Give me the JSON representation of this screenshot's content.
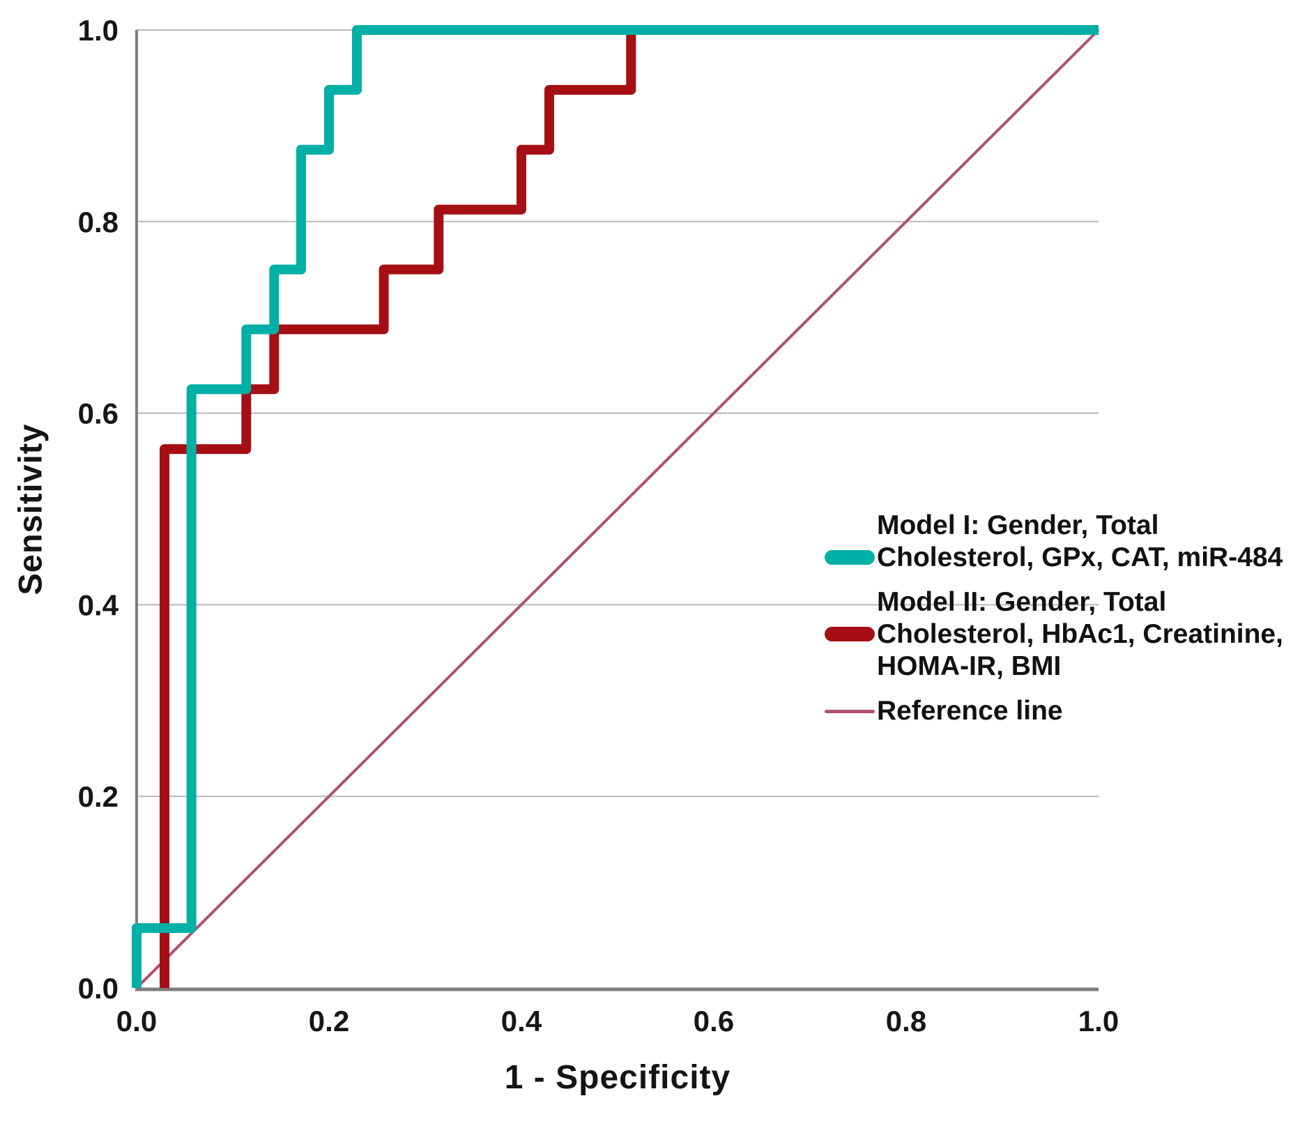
{
  "chart_data": {
    "type": "line",
    "subtype": "roc-step-curves",
    "title": "",
    "xlabel": "1 - Specificity",
    "ylabel": "Sensitivity",
    "xlim": [
      0.0,
      1.0
    ],
    "ylim": [
      0.0,
      1.0
    ],
    "x_tick_values": [
      0.0,
      0.2,
      0.4,
      0.6,
      0.8,
      1.0
    ],
    "x_tick_labels": [
      "0.0",
      "0.2",
      "0.4",
      "0.6",
      "0.8",
      "1.0"
    ],
    "y_tick_values": [
      0.0,
      0.2,
      0.4,
      0.6,
      0.8,
      1.0
    ],
    "y_tick_labels": [
      "0.0",
      "0.2",
      "0.4",
      "0.6",
      "0.8",
      "1.0"
    ],
    "grid": {
      "horizontal": true,
      "vertical": false
    },
    "legend_position": "inside-right",
    "colors": {
      "gridline": "#b9b9b9",
      "axis_line": "#7d7d7d",
      "text": "#161616"
    },
    "series": [
      {
        "name": "Model I: Gender, Total Cholesterol, GPx, CAT, miR-484",
        "color": "#00afa5",
        "stroke_width": 14,
        "points": [
          [
            0,
            0
          ],
          [
            0,
            0.0625
          ],
          [
            0.057,
            0.0625
          ],
          [
            0.057,
            0.625
          ],
          [
            0.114,
            0.625
          ],
          [
            0.114,
            0.6875
          ],
          [
            0.143,
            0.6875
          ],
          [
            0.143,
            0.75
          ],
          [
            0.171,
            0.75
          ],
          [
            0.171,
            0.875
          ],
          [
            0.2,
            0.875
          ],
          [
            0.2,
            0.9375
          ],
          [
            0.229,
            0.9375
          ],
          [
            0.229,
            1.0
          ],
          [
            1.0,
            1.0
          ]
        ]
      },
      {
        "name": "Model II: Gender, Total Cholesterol, HbAc1, Creatinine, HOMA-IR, BMI",
        "color": "#a50f14",
        "stroke_width": 14,
        "points": [
          [
            0.029,
            0
          ],
          [
            0.029,
            0.5625
          ],
          [
            0.114,
            0.5625
          ],
          [
            0.114,
            0.625
          ],
          [
            0.143,
            0.625
          ],
          [
            0.143,
            0.6875
          ],
          [
            0.257,
            0.6875
          ],
          [
            0.257,
            0.75
          ],
          [
            0.314,
            0.75
          ],
          [
            0.314,
            0.8125
          ],
          [
            0.4,
            0.8125
          ],
          [
            0.4,
            0.875
          ],
          [
            0.429,
            0.875
          ],
          [
            0.429,
            0.9375
          ],
          [
            0.514,
            0.9375
          ],
          [
            0.514,
            1.0
          ],
          [
            1.0,
            1.0
          ]
        ]
      }
    ],
    "reference": {
      "name": "Reference line",
      "color": "#b14f73",
      "stroke_width": 4,
      "points": [
        [
          0,
          0
        ],
        [
          1,
          1
        ]
      ]
    }
  }
}
